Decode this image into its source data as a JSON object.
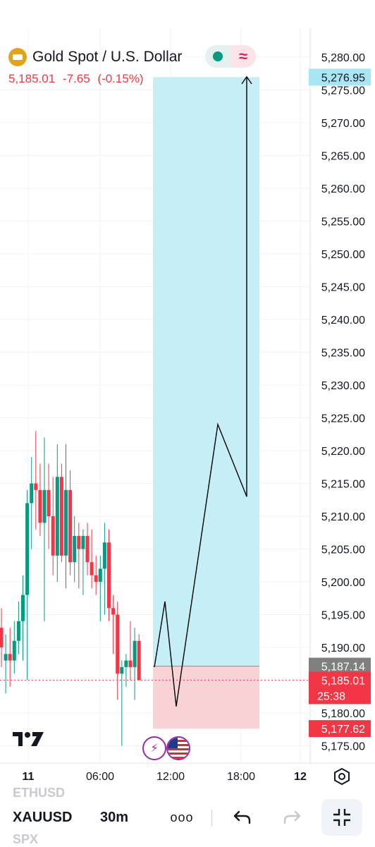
{
  "header": {
    "title": "Gold Spot / U.S. Dollar",
    "price": "5,185.01",
    "change": "-7.65",
    "change_pct": "(-0.15%)",
    "pill_right_glyph": "≈"
  },
  "axis": {
    "price_labels": [
      "5,280.00",
      "5,275.00",
      "5,270.00",
      "5,265.00",
      "5,260.00",
      "5,255.00",
      "5,250.00",
      "5,245.00",
      "5,240.00",
      "5,235.00",
      "5,230.00",
      "5,225.00",
      "5,220.00",
      "5,215.00",
      "5,210.00",
      "5,205.00",
      "5,200.00",
      "5,195.00",
      "5,190.00",
      "5,180.00",
      "5,175.00"
    ],
    "time_labels": [
      "11",
      "06:00",
      "12:00",
      "18:00",
      "12"
    ]
  },
  "markers": {
    "target": "5,276.95",
    "entry": "5,187.14",
    "current_price": "5,185.01",
    "countdown": "25:38",
    "stop": "5,177.62"
  },
  "toolbar": {
    "symbol": "XAUUSD",
    "interval": "30m",
    "more": "ooo",
    "ghost_above": "ETHUSD",
    "ghost_below": "SPX"
  },
  "icons": {
    "settings": "settings-icon",
    "undo": "undo-icon",
    "redo": "redo-icon",
    "collapse": "collapse-icon",
    "logo": "tradingview-logo",
    "flash": "flash-icon",
    "flag": "us-flag-icon"
  },
  "colors": {
    "up": "#089981",
    "down": "#f23645",
    "profit_zone": "#c5eef6",
    "loss_zone": "#f9d2d6",
    "target_badge": "#a7e6f2",
    "entry_badge": "#808080",
    "price_badge": "#f23645",
    "gold": "#e0a31c"
  },
  "chart_data": {
    "type": "candlestick",
    "symbol": "XAUUSD",
    "interval": "30m",
    "ylim": [
      5173,
      5284
    ],
    "candles": [
      {
        "o": 5193,
        "h": 5196,
        "l": 5187,
        "c": 5190
      },
      {
        "o": 5188,
        "h": 5192,
        "l": 5183,
        "c": 5189
      },
      {
        "o": 5189,
        "h": 5193,
        "l": 5184,
        "c": 5188
      },
      {
        "o": 5188,
        "h": 5194,
        "l": 5186,
        "c": 5191
      },
      {
        "o": 5191,
        "h": 5197,
        "l": 5189,
        "c": 5194
      },
      {
        "o": 5194,
        "h": 5201,
        "l": 5188,
        "c": 5198
      },
      {
        "o": 5198,
        "h": 5214,
        "l": 5185,
        "c": 5212
      },
      {
        "o": 5212,
        "h": 5219,
        "l": 5205,
        "c": 5215
      },
      {
        "o": 5215,
        "h": 5223,
        "l": 5208,
        "c": 5214
      },
      {
        "o": 5214,
        "h": 5218,
        "l": 5207,
        "c": 5209
      },
      {
        "o": 5209,
        "h": 5222,
        "l": 5194,
        "c": 5214
      },
      {
        "o": 5214,
        "h": 5218,
        "l": 5205,
        "c": 5210
      },
      {
        "o": 5210,
        "h": 5216,
        "l": 5201,
        "c": 5204
      },
      {
        "o": 5204,
        "h": 5221,
        "l": 5200,
        "c": 5216
      },
      {
        "o": 5216,
        "h": 5218,
        "l": 5203,
        "c": 5204
      },
      {
        "o": 5204,
        "h": 5221,
        "l": 5199,
        "c": 5214
      },
      {
        "o": 5214,
        "h": 5217,
        "l": 5201,
        "c": 5203
      },
      {
        "o": 5203,
        "h": 5210,
        "l": 5200,
        "c": 5207
      },
      {
        "o": 5207,
        "h": 5209,
        "l": 5199,
        "c": 5205
      },
      {
        "o": 5205,
        "h": 5208,
        "l": 5198,
        "c": 5207
      },
      {
        "o": 5207,
        "h": 5209,
        "l": 5201,
        "c": 5203
      },
      {
        "o": 5203,
        "h": 5208,
        "l": 5199,
        "c": 5201
      },
      {
        "o": 5201,
        "h": 5204,
        "l": 5198,
        "c": 5200
      },
      {
        "o": 5200,
        "h": 5204,
        "l": 5194,
        "c": 5202
      },
      {
        "o": 5202,
        "h": 5209,
        "l": 5195,
        "c": 5206
      },
      {
        "o": 5206,
        "h": 5208,
        "l": 5194,
        "c": 5196
      },
      {
        "o": 5196,
        "h": 5198,
        "l": 5189,
        "c": 5195
      },
      {
        "o": 5195,
        "h": 5197,
        "l": 5182,
        "c": 5186
      },
      {
        "o": 5186,
        "h": 5188,
        "l": 5175,
        "c": 5187
      },
      {
        "o": 5187,
        "h": 5189,
        "l": 5184,
        "c": 5188
      },
      {
        "o": 5188,
        "h": 5194,
        "l": 5185,
        "c": 5187
      },
      {
        "o": 5187,
        "h": 5193,
        "l": 5182,
        "c": 5191
      },
      {
        "o": 5191,
        "h": 5192,
        "l": 5186,
        "c": 5185
      }
    ],
    "position": {
      "target": 5276.95,
      "entry": 5187.14,
      "stop": 5177.62
    },
    "current_price": 5185.01,
    "projection_path_prices": [
      5187,
      5197,
      5181,
      5224,
      5213,
      5277
    ]
  }
}
